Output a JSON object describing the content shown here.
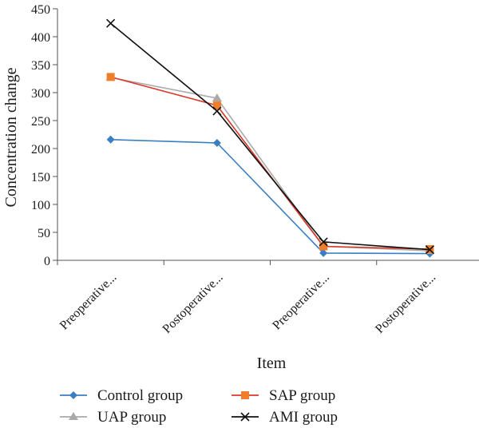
{
  "chart_data": {
    "type": "line",
    "title": "",
    "xlabel": "Item",
    "ylabel": "Concentration change",
    "ylim": [
      0,
      450
    ],
    "yticks": [
      0,
      50,
      100,
      150,
      200,
      250,
      300,
      350,
      400,
      450
    ],
    "categories": [
      "Preoperative...",
      "Postoperative...",
      "Preoperative...",
      "Postoperative..."
    ],
    "grid": false,
    "legend_position": "bottom",
    "series": [
      {
        "name": "Control group",
        "values": [
          216,
          210,
          13,
          12
        ],
        "color": "#3a7fc1",
        "marker": "diamond"
      },
      {
        "name": "SAP group",
        "values": [
          328,
          277,
          25,
          20
        ],
        "color": "#d9392b",
        "marker_color": "#f07d2a",
        "marker": "square"
      },
      {
        "name": "UAP group",
        "values": [
          327,
          290,
          25,
          17
        ],
        "color": "#aaaaaa",
        "marker": "triangle"
      },
      {
        "name": "AMI group",
        "values": [
          424,
          267,
          33,
          19
        ],
        "color": "#111111",
        "marker": "x"
      }
    ]
  }
}
